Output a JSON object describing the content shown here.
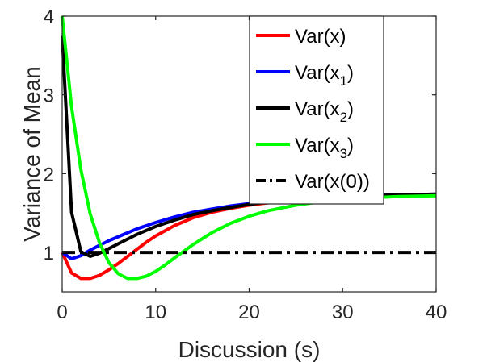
{
  "chart_data": {
    "type": "line",
    "title": "",
    "xlabel": "Discussion (s)",
    "ylabel": "Variance of Mean",
    "xlim": [
      0,
      40
    ],
    "ylim": [
      0.5,
      4
    ],
    "xticks": [
      0,
      10,
      20,
      30,
      40
    ],
    "yticks": [
      1,
      2,
      3,
      4
    ],
    "grid": false,
    "legend_position": "top-right",
    "series": [
      {
        "key": "var_x",
        "legend_base": "Var(x)",
        "legend_sub": "",
        "legend_tail": "",
        "color": "#ff0000",
        "dash": "solid",
        "x": [
          0,
          1,
          2,
          3,
          4,
          5,
          6,
          7,
          8,
          9,
          10,
          12,
          14,
          16,
          18,
          20,
          22,
          25,
          28,
          32,
          36,
          40
        ],
        "y": [
          1.0,
          0.74,
          0.67,
          0.67,
          0.71,
          0.78,
          0.86,
          0.95,
          1.04,
          1.13,
          1.21,
          1.34,
          1.44,
          1.51,
          1.56,
          1.6,
          1.63,
          1.66,
          1.69,
          1.71,
          1.72,
          1.73
        ]
      },
      {
        "key": "var_x1",
        "legend_base": "Var(x",
        "legend_sub": "1",
        "legend_tail": ")",
        "color": "#0000ff",
        "dash": "solid",
        "x": [
          0,
          1,
          2,
          3,
          4,
          5,
          6,
          8,
          10,
          12,
          14,
          16,
          18,
          20,
          22,
          25,
          28,
          32,
          36,
          40
        ],
        "y": [
          1.0,
          0.92,
          0.96,
          1.03,
          1.09,
          1.15,
          1.2,
          1.3,
          1.38,
          1.45,
          1.51,
          1.55,
          1.59,
          1.62,
          1.65,
          1.68,
          1.7,
          1.72,
          1.73,
          1.74
        ]
      },
      {
        "key": "var_x2",
        "legend_base": "Var(x",
        "legend_sub": "2",
        "legend_tail": ")",
        "color": "#000000",
        "dash": "solid",
        "x": [
          0,
          1,
          2,
          3,
          4,
          5,
          6,
          8,
          10,
          12,
          14,
          16,
          18,
          20,
          22,
          25,
          28,
          32,
          36,
          40
        ],
        "y": [
          3.75,
          1.51,
          1.01,
          0.95,
          0.99,
          1.05,
          1.11,
          1.23,
          1.33,
          1.41,
          1.48,
          1.53,
          1.57,
          1.61,
          1.64,
          1.67,
          1.69,
          1.72,
          1.73,
          1.74
        ]
      },
      {
        "key": "var_x3",
        "legend_base": "Var(x",
        "legend_sub": "3",
        "legend_tail": ")",
        "color": "#00ff00",
        "dash": "solid",
        "x": [
          0,
          1,
          2,
          3,
          4,
          5,
          6,
          7,
          8,
          9,
          10,
          11,
          12,
          14,
          16,
          18,
          20,
          22,
          25,
          28,
          32,
          36,
          40
        ],
        "y": [
          4.0,
          2.85,
          2.05,
          1.49,
          1.12,
          0.87,
          0.73,
          0.67,
          0.67,
          0.7,
          0.76,
          0.84,
          0.93,
          1.1,
          1.25,
          1.37,
          1.46,
          1.53,
          1.6,
          1.65,
          1.69,
          1.71,
          1.72
        ]
      },
      {
        "key": "var_x0",
        "legend_base": "Var(x(0))",
        "legend_sub": "",
        "legend_tail": "",
        "color": "#000000",
        "dash": "dashdot",
        "x": [
          0,
          40
        ],
        "y": [
          1.0,
          1.0
        ]
      }
    ]
  }
}
